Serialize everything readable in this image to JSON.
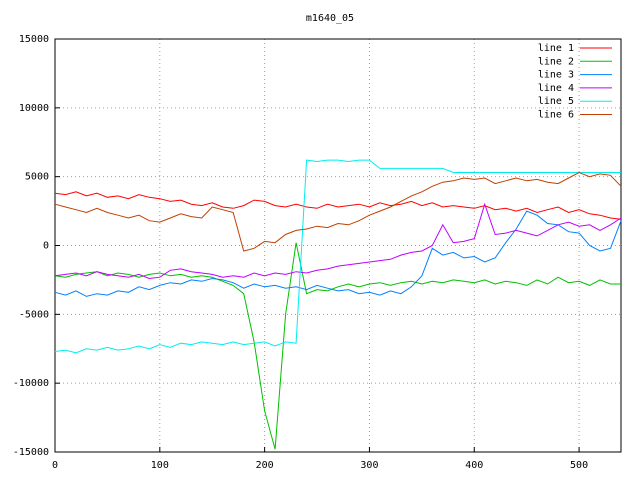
{
  "chart_data": {
    "type": "line",
    "title": "m1640_05",
    "x": [
      0,
      10,
      20,
      30,
      40,
      50,
      60,
      70,
      80,
      90,
      100,
      110,
      120,
      130,
      140,
      150,
      160,
      170,
      180,
      190,
      200,
      210,
      220,
      230,
      240,
      250,
      260,
      270,
      280,
      290,
      300,
      310,
      320,
      330,
      340,
      350,
      360,
      370,
      380,
      390,
      400,
      410,
      420,
      430,
      440,
      450,
      460,
      470,
      480,
      490,
      500,
      510,
      520,
      530,
      540
    ],
    "xlim": [
      0,
      540
    ],
    "xticks": [
      0,
      100,
      200,
      300,
      400,
      500
    ],
    "ylim": [
      -15000,
      15000
    ],
    "yticks": [
      -15000,
      -10000,
      -5000,
      0,
      5000,
      10000,
      15000
    ],
    "grid": true,
    "legend": "upper-right",
    "series": [
      {
        "name": "line 1",
        "color": "#ff0000",
        "values": [
          3800,
          3700,
          3900,
          3600,
          3800,
          3500,
          3600,
          3400,
          3700,
          3500,
          3400,
          3200,
          3300,
          3000,
          2900,
          3100,
          2800,
          2700,
          2900,
          3300,
          3200,
          2900,
          2800,
          3000,
          2800,
          2700,
          3000,
          2800,
          2900,
          3000,
          2800,
          3100,
          2900,
          3000,
          3200,
          2900,
          3100,
          2800,
          2900,
          2800,
          2700,
          2900,
          2600,
          2700,
          2500,
          2700,
          2400,
          2600,
          2800,
          2400,
          2600,
          2300,
          2200,
          2000,
          1900
        ]
      },
      {
        "name": "line 2",
        "color": "#00c000",
        "values": [
          -2200,
          -2300,
          -2100,
          -2000,
          -1900,
          -2200,
          -2000,
          -2100,
          -2300,
          -2100,
          -2000,
          -2200,
          -2100,
          -2300,
          -2200,
          -2300,
          -2600,
          -2900,
          -3500,
          -7000,
          -12000,
          -14800,
          -5000,
          200,
          -3500,
          -3200,
          -3300,
          -3000,
          -2800,
          -3000,
          -2800,
          -2700,
          -2900,
          -2700,
          -2600,
          -2800,
          -2600,
          -2700,
          -2500,
          -2600,
          -2700,
          -2500,
          -2800,
          -2600,
          -2700,
          -2900,
          -2500,
          -2800,
          -2300,
          -2700,
          -2600,
          -2900,
          -2500,
          -2800,
          -2800
        ]
      },
      {
        "name": "line 3",
        "color": "#0080ff",
        "values": [
          -3400,
          -3600,
          -3300,
          -3700,
          -3500,
          -3600,
          -3300,
          -3400,
          -3000,
          -3200,
          -2900,
          -2700,
          -2800,
          -2500,
          -2600,
          -2400,
          -2500,
          -2700,
          -3100,
          -2800,
          -3000,
          -2900,
          -3100,
          -3000,
          -3200,
          -2900,
          -3100,
          -3300,
          -3200,
          -3500,
          -3400,
          -3600,
          -3300,
          -3500,
          -3000,
          -2200,
          -200,
          -700,
          -500,
          -900,
          -800,
          -1200,
          -900,
          200,
          1200,
          2500,
          2200,
          1600,
          1500,
          1000,
          900,
          0,
          -400,
          -200,
          1800
        ]
      },
      {
        "name": "line 4",
        "color": "#c000ff",
        "values": [
          -2200,
          -2100,
          -2000,
          -2200,
          -1900,
          -2100,
          -2200,
          -2300,
          -2100,
          -2400,
          -2300,
          -1800,
          -1700,
          -1900,
          -2000,
          -2100,
          -2300,
          -2200,
          -2300,
          -2000,
          -2200,
          -2000,
          -2100,
          -1900,
          -2000,
          -1800,
          -1700,
          -1500,
          -1400,
          -1300,
          -1200,
          -1100,
          -1000,
          -700,
          -500,
          -400,
          0,
          1500,
          200,
          300,
          500,
          3000,
          800,
          900,
          1100,
          900,
          700,
          1100,
          1500,
          1700,
          1400,
          1500,
          1100,
          1500,
          2000
        ]
      },
      {
        "name": "line 5",
        "color": "#00eeee",
        "values": [
          -7700,
          -7600,
          -7800,
          -7500,
          -7600,
          -7400,
          -7600,
          -7500,
          -7300,
          -7500,
          -7200,
          -7400,
          -7100,
          -7200,
          -7000,
          -7100,
          -7200,
          -7000,
          -7200,
          -7100,
          -7000,
          -7300,
          -7000,
          -7100,
          6200,
          6100,
          6200,
          6200,
          6100,
          6200,
          6200,
          5600,
          5600,
          5600,
          5600,
          5600,
          5600,
          5600,
          5300,
          5300,
          5300,
          5300,
          5300,
          5300,
          5300,
          5300,
          5300,
          5300,
          5300,
          5300,
          5300,
          5300,
          5300,
          5300,
          5300
        ]
      },
      {
        "name": "line 6",
        "color": "#c04000",
        "values": [
          3000,
          2800,
          2600,
          2400,
          2700,
          2400,
          2200,
          2000,
          2200,
          1800,
          1700,
          2000,
          2300,
          2100,
          2000,
          2800,
          2600,
          2400,
          -400,
          -200,
          300,
          200,
          800,
          1100,
          1200,
          1400,
          1300,
          1600,
          1500,
          1800,
          2200,
          2500,
          2800,
          3200,
          3600,
          3900,
          4300,
          4600,
          4700,
          4900,
          4800,
          4900,
          4500,
          4700,
          4900,
          4700,
          4800,
          4600,
          4500,
          4900,
          5300,
          5000,
          5200,
          5100,
          4300
        ]
      }
    ]
  }
}
